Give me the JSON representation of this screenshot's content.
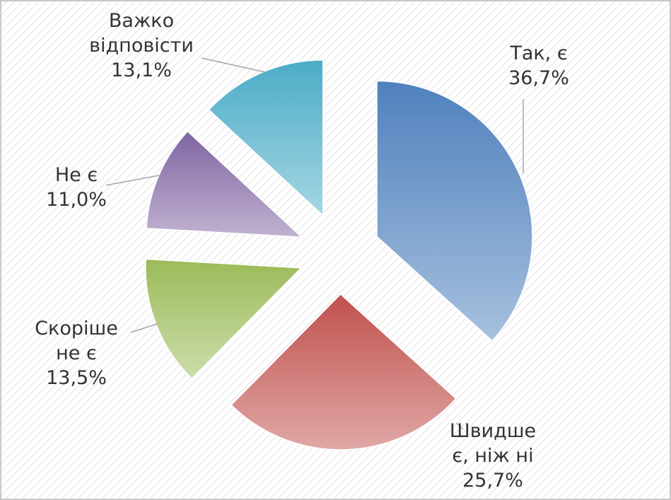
{
  "chart_data": {
    "type": "pie",
    "categories": [
      "Так, є",
      "Швидше є, ніж ні",
      "Скоріше не є",
      "Не є",
      "Важко відповісти"
    ],
    "values": [
      36.7,
      25.7,
      13.5,
      11.0,
      13.1
    ],
    "value_labels": [
      "36,7%",
      "25,7%",
      "13,5%",
      "11,0%",
      "13,1%"
    ],
    "colors": [
      "#4f81bd",
      "#c0504d",
      "#9bbb59",
      "#8064a2",
      "#4bacc6"
    ]
  }
}
